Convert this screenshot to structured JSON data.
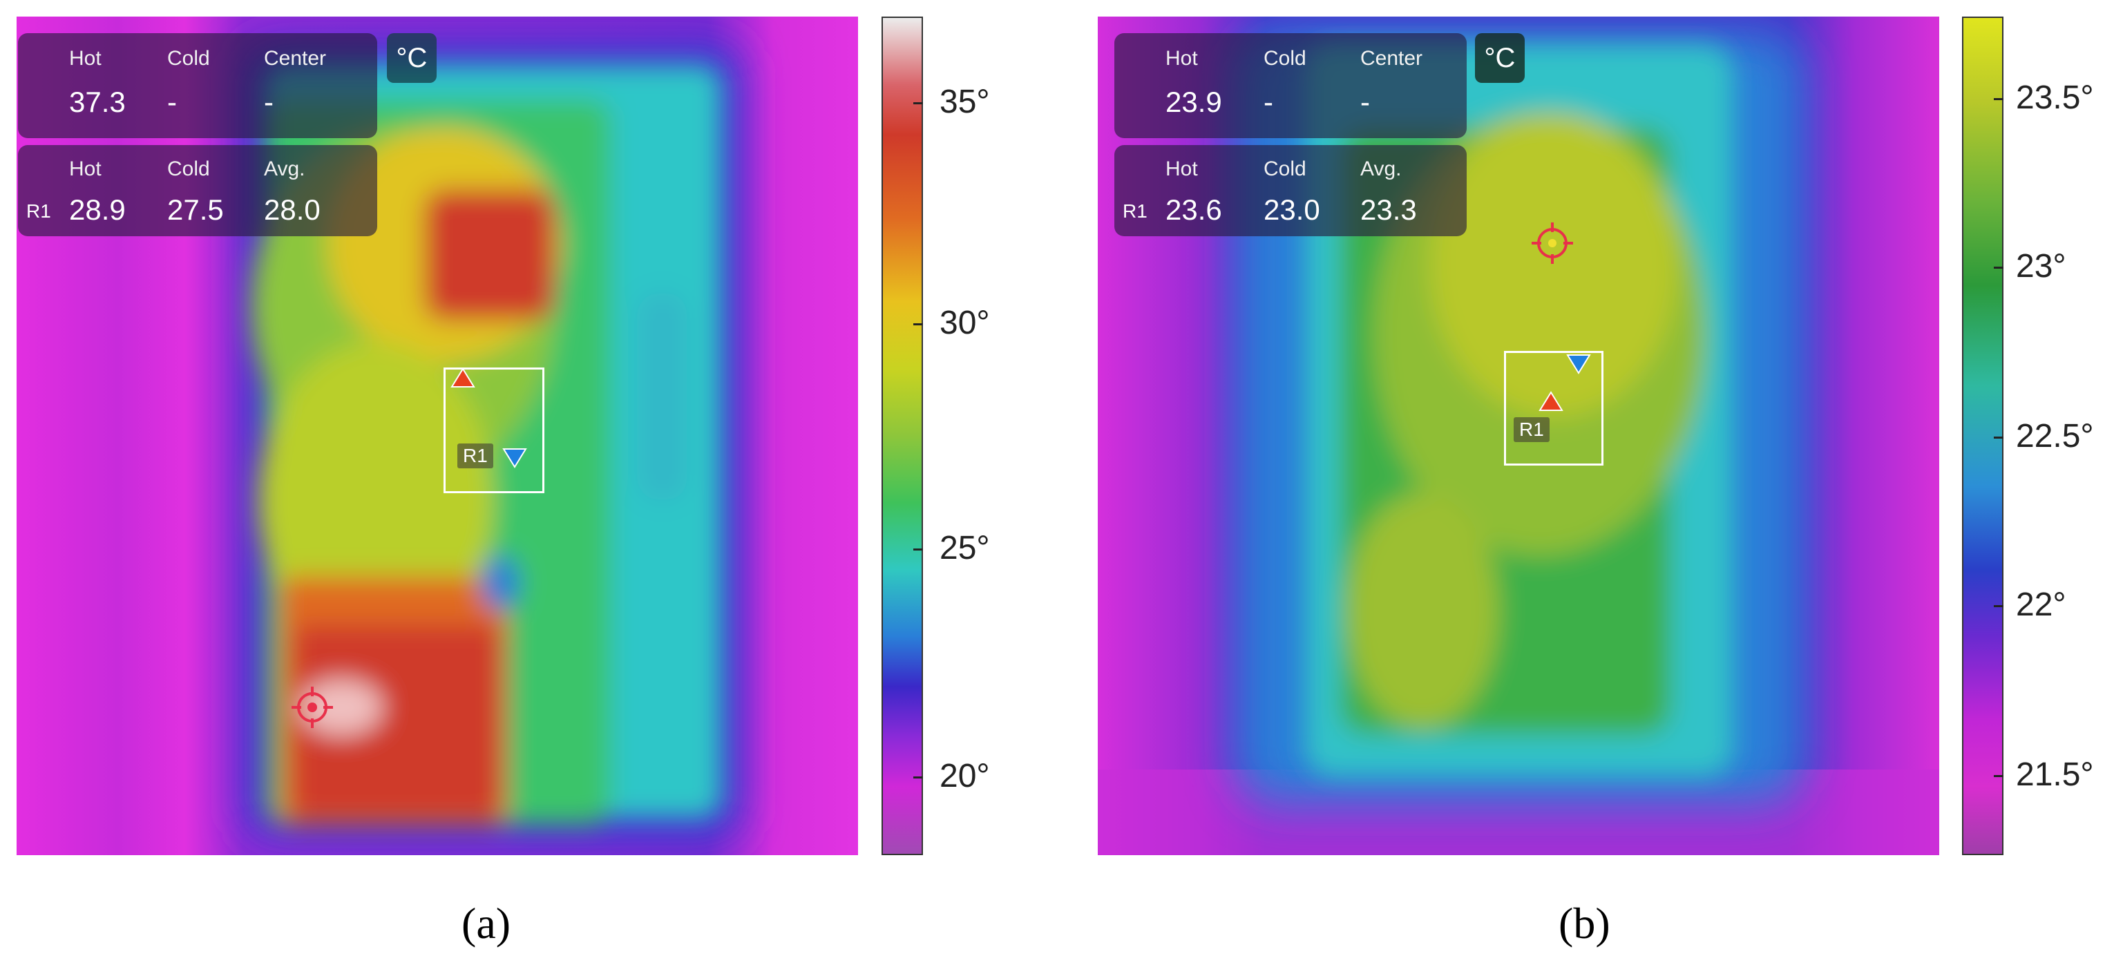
{
  "panels": [
    {
      "caption": "(a)",
      "unit": "°C",
      "spot": {
        "labels": [
          "Hot",
          "Cold",
          "Center"
        ],
        "values": [
          "37.3",
          "-",
          "-"
        ]
      },
      "region": {
        "name": "R1",
        "labels": [
          "Hot",
          "Cold",
          "Avg."
        ],
        "values": [
          "28.9",
          "27.5",
          "28.0"
        ]
      },
      "roi_label": "R1",
      "scale_labels": [
        "35°",
        "30°",
        "25°",
        "20°"
      ]
    },
    {
      "caption": "(b)",
      "unit": "°C",
      "spot": {
        "labels": [
          "Hot",
          "Cold",
          "Center"
        ],
        "values": [
          "23.9",
          "-",
          "-"
        ]
      },
      "region": {
        "name": "R1",
        "labels": [
          "Hot",
          "Cold",
          "Avg."
        ],
        "values": [
          "23.6",
          "23.0",
          "23.3"
        ]
      },
      "roi_label": "R1",
      "scale_labels": [
        "23.5°",
        "23°",
        "22.5°",
        "22°",
        "21.5°"
      ]
    }
  ],
  "colors": {
    "hot_marker": "#e8401e",
    "cold_marker": "#1e7fe0",
    "crosshair": "#e8304a"
  }
}
